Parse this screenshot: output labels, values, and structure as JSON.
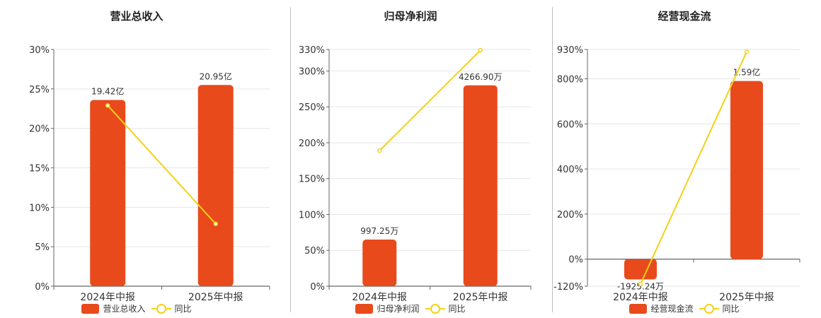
{
  "colors": {
    "bar": "#e84a1c",
    "line": "#f2d217",
    "grid": "#e6e6e6",
    "axis": "#666666"
  },
  "chart_data": [
    {
      "type": "bar",
      "title": "营业总收入",
      "categories": [
        "2024年中报",
        "2025年中报"
      ],
      "series": [
        {
          "name": "营业总收入",
          "kind": "bar",
          "values": [
            23.6,
            25.5
          ],
          "labels": [
            "19.42亿",
            "20.95亿"
          ]
        },
        {
          "name": "同比",
          "kind": "line",
          "values": [
            22.9,
            7.9
          ]
        }
      ],
      "yticks": [
        "0%",
        "5%",
        "10%",
        "15%",
        "20%",
        "25%",
        "30%"
      ],
      "ytick_values": [
        0,
        5,
        10,
        15,
        20,
        25,
        30
      ],
      "ylim": [
        0,
        30
      ],
      "grid": true,
      "legend": "bottom"
    },
    {
      "type": "bar",
      "title": "归母净利润",
      "categories": [
        "2024年中报",
        "2025年中报"
      ],
      "series": [
        {
          "name": "归母净利润",
          "kind": "bar",
          "values": [
            65,
            280
          ],
          "labels": [
            "997.25万",
            "4266.90万"
          ]
        },
        {
          "name": "同比",
          "kind": "line",
          "values": [
            189,
            329
          ]
        }
      ],
      "yticks": [
        "0%",
        "50%",
        "100%",
        "150%",
        "200%",
        "250%",
        "300%",
        "330%"
      ],
      "ytick_values": [
        0,
        50,
        100,
        150,
        200,
        250,
        300,
        330
      ],
      "ylim": [
        0,
        330
      ],
      "grid": true,
      "legend": "bottom"
    },
    {
      "type": "bar",
      "title": "经营现金流",
      "categories": [
        "2024年中报",
        "2025年中报"
      ],
      "series": [
        {
          "name": "经营现金流",
          "kind": "bar",
          "values": [
            -90,
            790
          ],
          "labels": [
            "-1925.24万",
            "1.59亿"
          ]
        },
        {
          "name": "同比",
          "kind": "line",
          "values": [
            -110,
            920
          ]
        }
      ],
      "yticks": [
        "-120%",
        "0%",
        "200%",
        "400%",
        "600%",
        "800%",
        "930%"
      ],
      "ytick_values": [
        -120,
        0,
        200,
        400,
        600,
        800,
        930
      ],
      "ylim": [
        -120,
        930
      ],
      "grid": true,
      "legend": "bottom"
    }
  ]
}
